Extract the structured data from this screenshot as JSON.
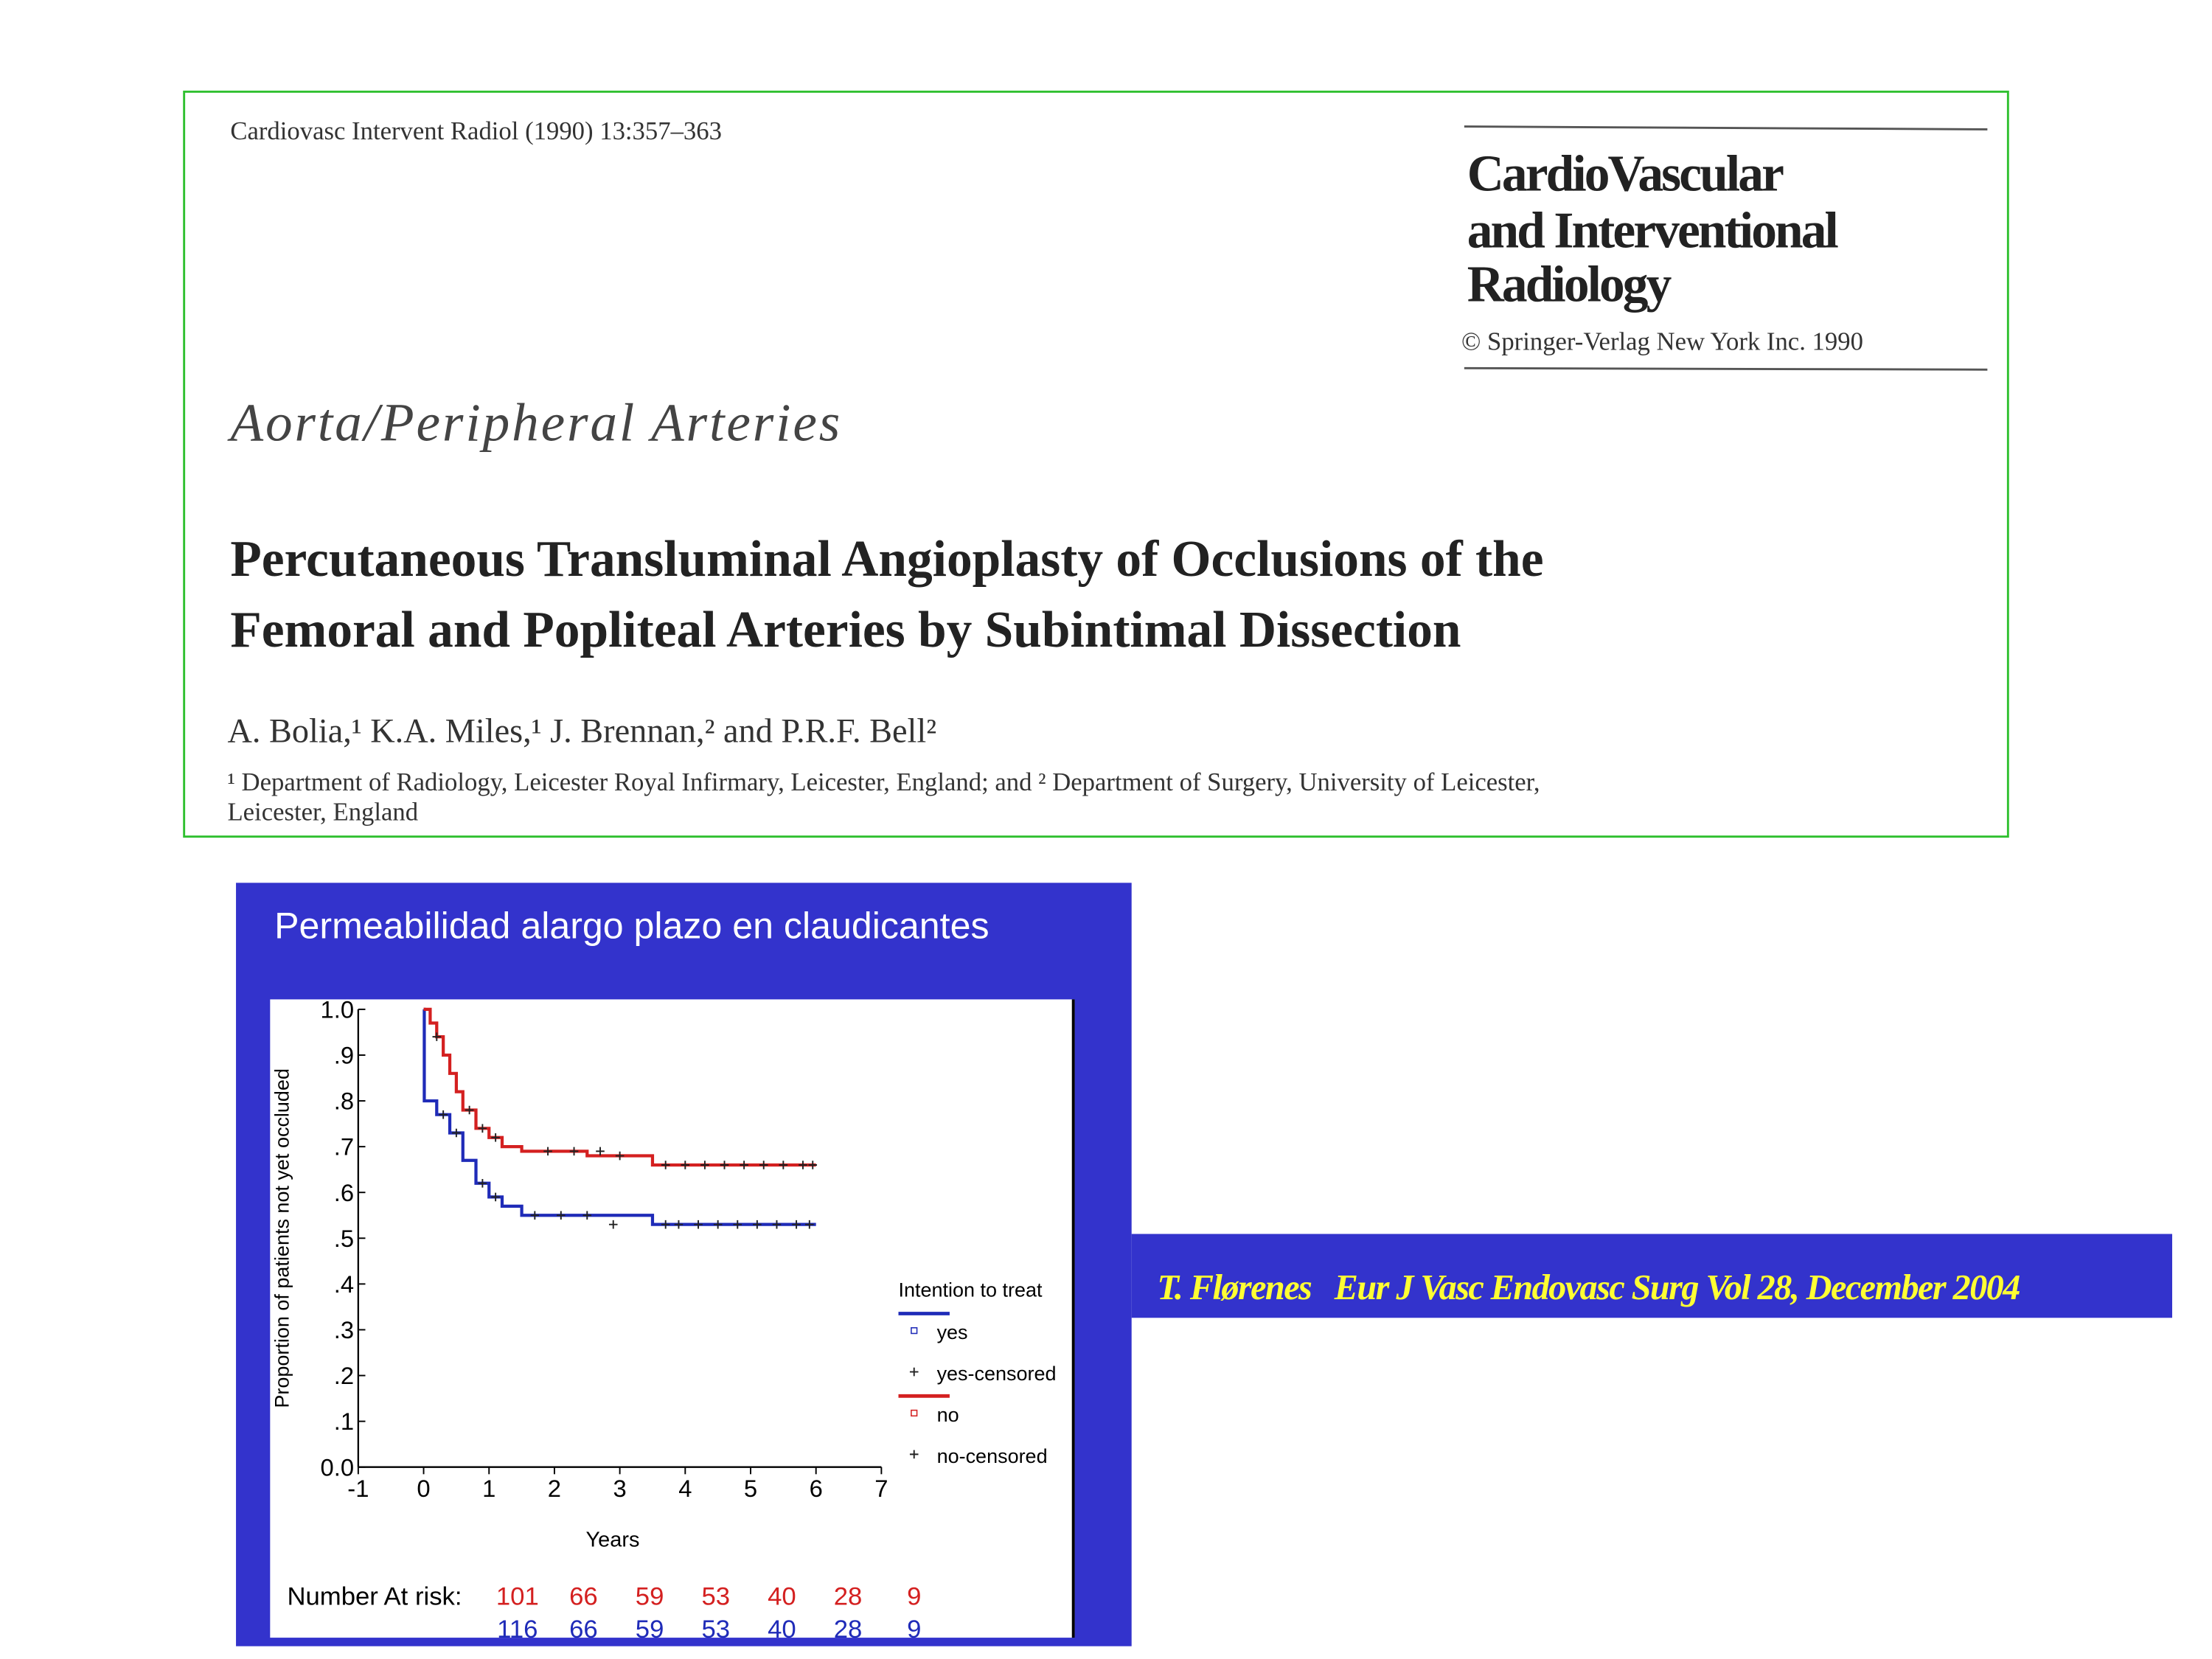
{
  "paper": {
    "citation": "Cardiovasc Intervent Radiol (1990) 13:357–363",
    "journal": [
      "CardioVascular",
      "and Interventional",
      "Radiology"
    ],
    "copyright": "© Springer-Verlag New York Inc. 1990",
    "section": "Aorta/Peripheral Arteries",
    "title": [
      "Percutaneous Transluminal Angioplasty of Occlusions of the",
      "Femoral and Popliteal Arteries by Subintimal Dissection"
    ],
    "authors": "A. Bolia,¹ K.A. Miles,¹ J. Brennan,² and P.R.F. Bell²",
    "affiliation": [
      "¹ Department of Radiology, Leicester Royal Infirmary, Leicester, England; and ² Department of Surgery, University of Leicester,",
      "Leicester, England"
    ]
  },
  "slide_title": "Permeabilidad alargo plazo  en claudicantes",
  "reference": "T. Flørenes   Eur J Vasc Endovasc Surg Vol 28, December 2004",
  "chart_data": {
    "type": "step",
    "x_label": "Years",
    "y_label": "Proportion of patients not yet occluded",
    "xlim": [
      -1,
      7
    ],
    "xticks": [
      -1,
      0,
      1,
      2,
      3,
      4,
      5,
      6,
      7
    ],
    "ylim": [
      0,
      1
    ],
    "yticks": [
      {
        "value": 0,
        "label": "0.0"
      },
      {
        "value": 0.1,
        "label": ".1"
      },
      {
        "value": 0.2,
        "label": ".2"
      },
      {
        "value": 0.3,
        "label": ".3"
      },
      {
        "value": 0.4,
        "label": ".4"
      },
      {
        "value": 0.5,
        "label": ".5"
      },
      {
        "value": 0.6,
        "label": ".6"
      },
      {
        "value": 0.7,
        "label": ".7"
      },
      {
        "value": 0.8,
        "label": ".8"
      },
      {
        "value": 0.9,
        "label": ".9"
      },
      {
        "value": 1,
        "label": "1.0"
      }
    ],
    "legend_title": "Intention to treat",
    "series": [
      {
        "name": "yes",
        "color": "#1f2bb8",
        "style": "step",
        "x": [
          0,
          0.01,
          0.2,
          0.4,
          0.6,
          0.8,
          1.0,
          1.2,
          1.5,
          2.5,
          3.5,
          6
        ],
        "values": [
          1.0,
          0.8,
          0.77,
          0.73,
          0.67,
          0.62,
          0.59,
          0.57,
          0.55,
          0.55,
          0.53,
          0.53
        ]
      },
      {
        "name": "yes-censored",
        "color": "#222222",
        "style": "plus",
        "x": [
          0.3,
          0.5,
          0.9,
          1.1,
          1.7,
          2.1,
          2.5,
          2.9,
          3.7,
          3.9,
          4.2,
          4.5,
          4.8,
          5.1,
          5.4,
          5.7,
          5.9
        ],
        "values": [
          0.77,
          0.73,
          0.62,
          0.59,
          0.55,
          0.55,
          0.55,
          0.53,
          0.53,
          0.53,
          0.53,
          0.53,
          0.53,
          0.53,
          0.53,
          0.53,
          0.53
        ]
      },
      {
        "name": "no",
        "color": "#d42020",
        "style": "step",
        "x": [
          0,
          0.1,
          0.2,
          0.3,
          0.4,
          0.5,
          0.6,
          0.8,
          1.0,
          1.2,
          1.5,
          2.5,
          3.5,
          6
        ],
        "values": [
          1.0,
          0.97,
          0.94,
          0.9,
          0.86,
          0.82,
          0.78,
          0.74,
          0.72,
          0.7,
          0.69,
          0.68,
          0.66,
          0.66
        ]
      },
      {
        "name": "no-censored",
        "color": "#222222",
        "style": "plus",
        "x": [
          0.2,
          0.7,
          0.9,
          1.1,
          1.9,
          2.3,
          2.7,
          3.0,
          3.7,
          4.0,
          4.3,
          4.6,
          4.9,
          5.2,
          5.5,
          5.8,
          5.95
        ],
        "values": [
          0.94,
          0.78,
          0.74,
          0.72,
          0.69,
          0.69,
          0.69,
          0.68,
          0.66,
          0.66,
          0.66,
          0.66,
          0.66,
          0.66,
          0.66,
          0.66,
          0.66
        ]
      }
    ],
    "risk_label": "Number At risk:",
    "risk_table": [
      {
        "color": "#d42020",
        "values": [
          101,
          66,
          59,
          53,
          40,
          28,
          9
        ]
      },
      {
        "color": "#1f2bb8",
        "values": [
          116,
          66,
          59,
          53,
          40,
          28,
          9
        ]
      }
    ]
  }
}
